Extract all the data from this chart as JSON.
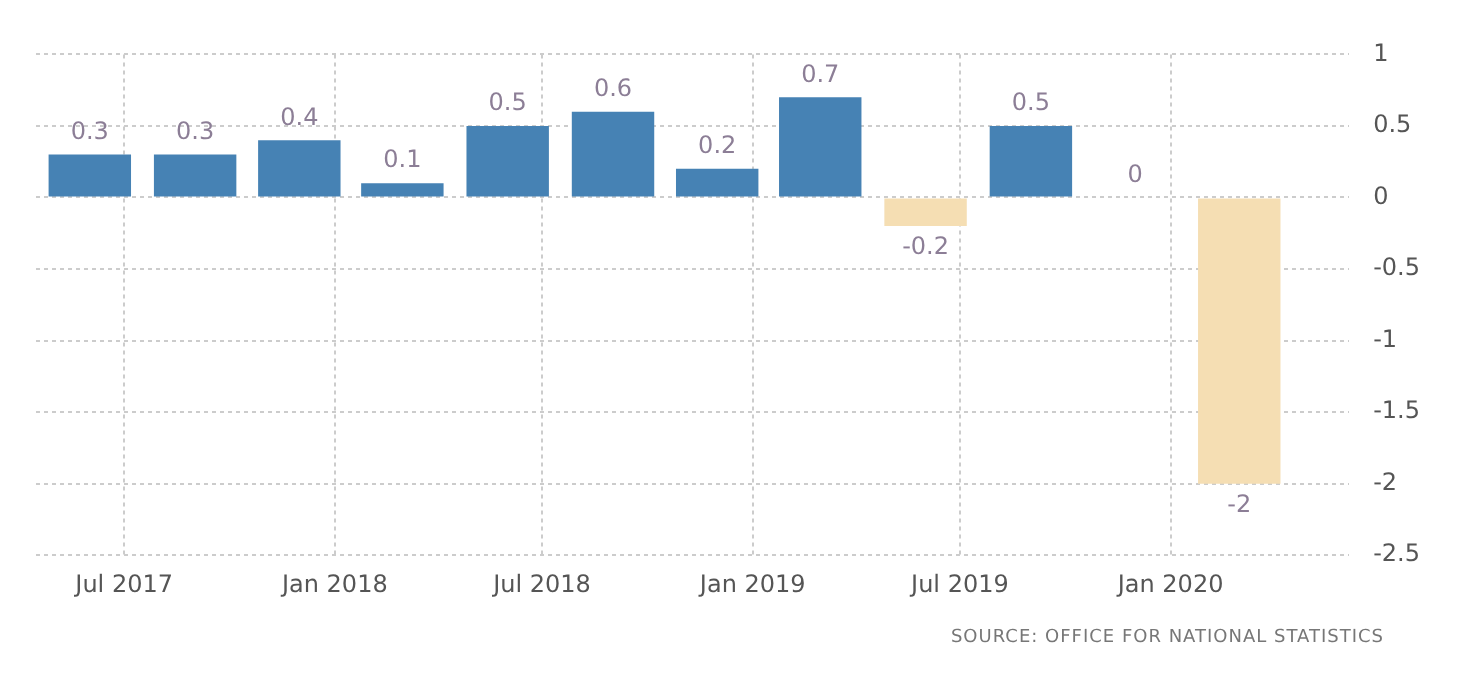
{
  "chart_data": {
    "type": "bar",
    "x": [
      "2017-06",
      "2017-09",
      "2017-12",
      "2018-03",
      "2018-06",
      "2018-09",
      "2018-12",
      "2019-03",
      "2019-06",
      "2019-09",
      "2019-12",
      "2020-03"
    ],
    "values": [
      0.3,
      0.3,
      0.4,
      0.1,
      0.5,
      0.6,
      0.2,
      0.7,
      -0.2,
      0.5,
      0,
      -2
    ],
    "colors": [
      "#4682b4",
      "#4682b4",
      "#4682b4",
      "#4682b4",
      "#4682b4",
      "#4682b4",
      "#4682b4",
      "#4682b4",
      "#f5deb3",
      "#4682b4",
      "#4682b4",
      "#f5deb3"
    ],
    "xlim": [
      "2017-04-15",
      "2020-06-05"
    ],
    "xticks": [
      {
        "value": "2017-07",
        "label": "Jul 2017"
      },
      {
        "value": "2018-01",
        "label": "Jan 2018"
      },
      {
        "value": "2018-07",
        "label": "Jul 2018"
      },
      {
        "value": "2019-01",
        "label": "Jan 2019"
      },
      {
        "value": "2019-07",
        "label": "Jul 2019"
      },
      {
        "value": "2020-01",
        "label": "Jan 2020"
      }
    ],
    "ylim": [
      -2.5,
      1
    ],
    "yticks": [
      -2.5,
      -2,
      -1.5,
      -1,
      -0.5,
      0,
      0.5,
      1
    ],
    "grid": true,
    "data_labels": true,
    "annotations": [
      "SOURCE: OFFICE FOR NATIONAL STATISTICS"
    ]
  }
}
